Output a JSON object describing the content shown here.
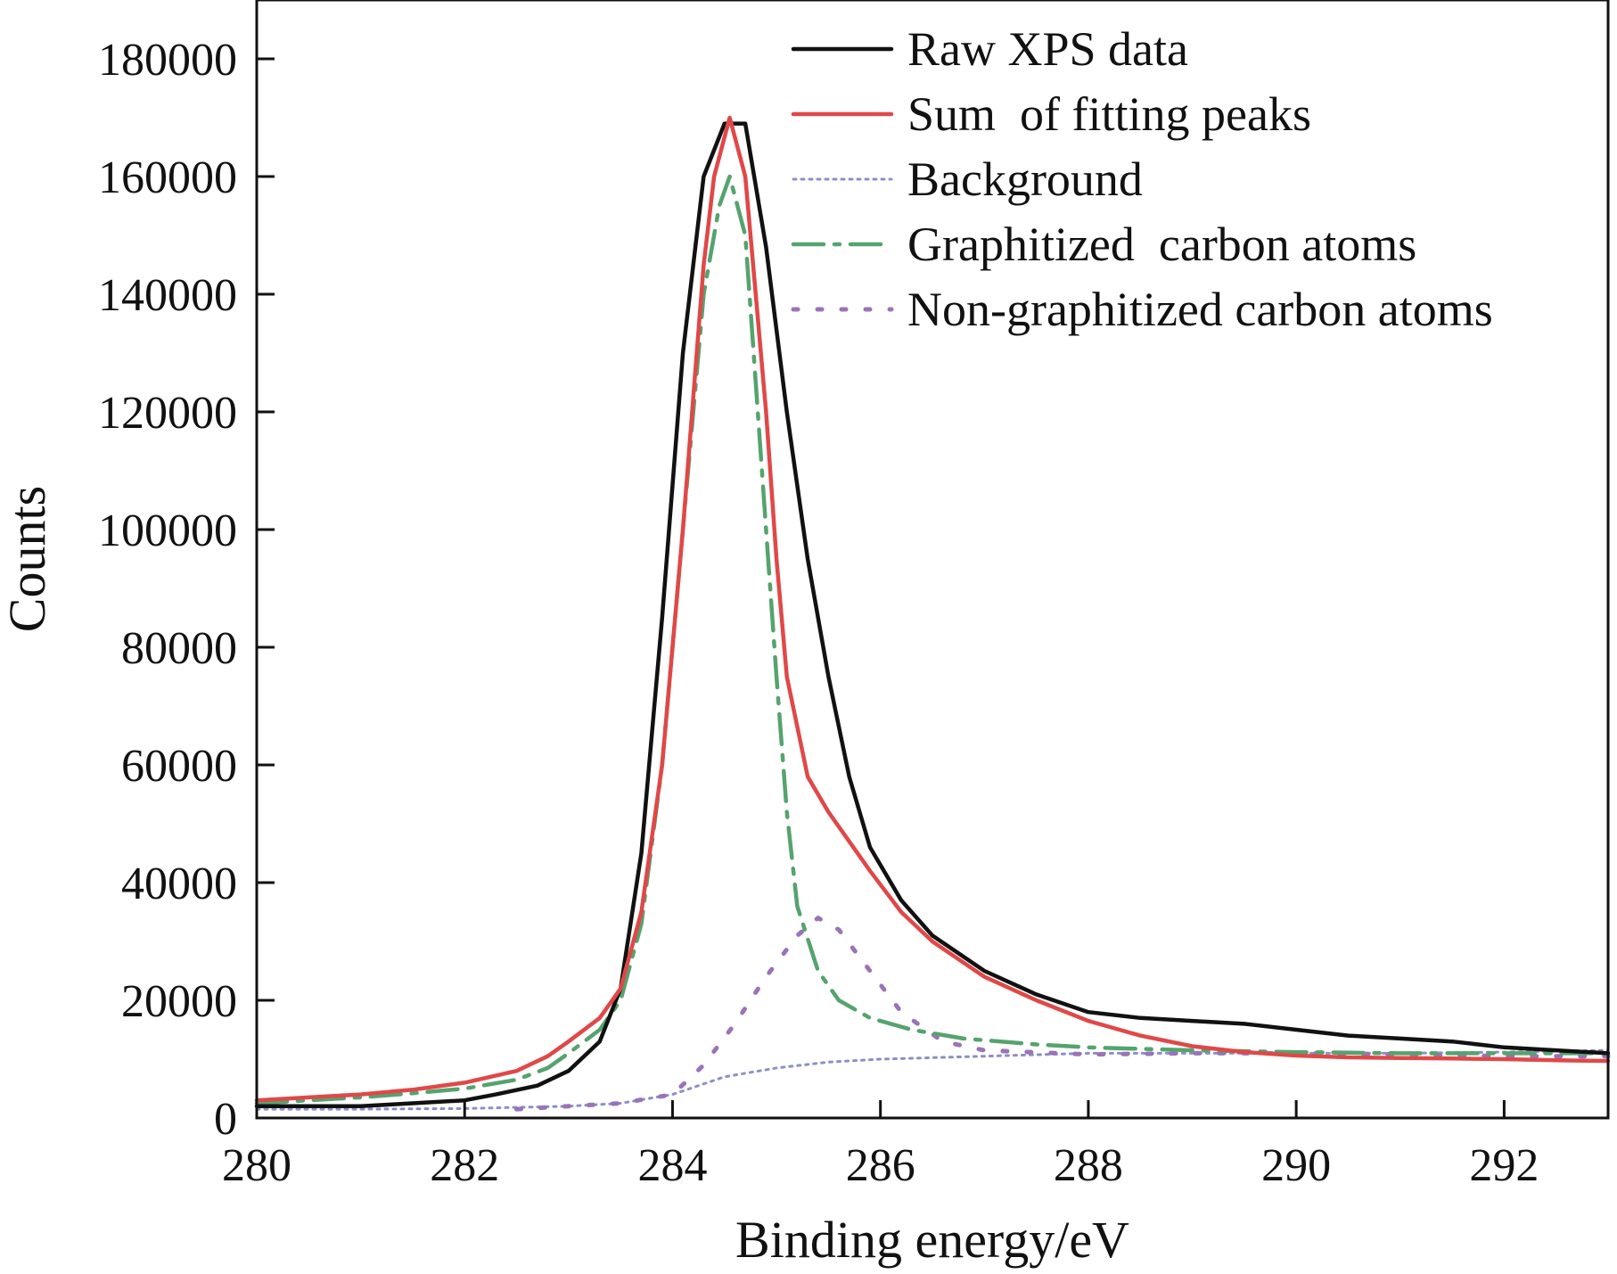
{
  "chart_data": {
    "type": "line",
    "title": "",
    "xlabel": "Binding energy/eV",
    "ylabel": "Counts",
    "xlim": [
      280,
      293
    ],
    "ylim": [
      0,
      190000
    ],
    "x_ticks": [
      280,
      282,
      284,
      286,
      288,
      290,
      292
    ],
    "x_tick_labels": [
      "280",
      "282",
      "284",
      "286",
      "288",
      "290",
      "292"
    ],
    "y_ticks": [
      0,
      20000,
      40000,
      60000,
      80000,
      100000,
      120000,
      140000,
      160000,
      180000
    ],
    "y_tick_labels": [
      "0",
      "20000",
      "40000",
      "60000",
      "80000",
      "100000",
      "120000",
      "140000",
      "160000",
      "180000"
    ],
    "grid": false,
    "legend_position": "top-right",
    "series": [
      {
        "name": "Raw XPS data",
        "color": "#111111",
        "style": "solid",
        "points": [
          [
            280,
            2000
          ],
          [
            280.5,
            2000
          ],
          [
            281,
            2000
          ],
          [
            281.5,
            2500
          ],
          [
            282,
            3000
          ],
          [
            282.3,
            4000
          ],
          [
            282.7,
            5500
          ],
          [
            283,
            8000
          ],
          [
            283.3,
            13000
          ],
          [
            283.5,
            22000
          ],
          [
            283.7,
            45000
          ],
          [
            283.9,
            85000
          ],
          [
            284.1,
            130000
          ],
          [
            284.3,
            160000
          ],
          [
            284.5,
            169000
          ],
          [
            284.7,
            169000
          ],
          [
            284.9,
            148000
          ],
          [
            285.1,
            120000
          ],
          [
            285.3,
            95000
          ],
          [
            285.5,
            75000
          ],
          [
            285.7,
            58000
          ],
          [
            285.9,
            46000
          ],
          [
            286.2,
            37000
          ],
          [
            286.5,
            31000
          ],
          [
            287,
            25000
          ],
          [
            287.5,
            21000
          ],
          [
            288,
            18000
          ],
          [
            288.5,
            17000
          ],
          [
            289,
            16500
          ],
          [
            289.5,
            16000
          ],
          [
            290,
            15000
          ],
          [
            290.5,
            14000
          ],
          [
            291,
            13500
          ],
          [
            291.5,
            13000
          ],
          [
            292,
            12000
          ],
          [
            292.5,
            11500
          ],
          [
            293,
            11000
          ]
        ]
      },
      {
        "name": "Sum  of fitting peaks",
        "color": "#e04848",
        "style": "solid",
        "points": [
          [
            280,
            3000
          ],
          [
            280.5,
            3500
          ],
          [
            281,
            4000
          ],
          [
            281.5,
            4800
          ],
          [
            282,
            6000
          ],
          [
            282.5,
            8000
          ],
          [
            282.8,
            10500
          ],
          [
            283,
            13000
          ],
          [
            283.3,
            17000
          ],
          [
            283.5,
            22000
          ],
          [
            283.7,
            35000
          ],
          [
            283.9,
            60000
          ],
          [
            284.1,
            100000
          ],
          [
            284.3,
            145000
          ],
          [
            284.4,
            160000
          ],
          [
            284.55,
            170000
          ],
          [
            284.7,
            160000
          ],
          [
            284.8,
            140000
          ],
          [
            284.9,
            120000
          ],
          [
            285,
            95000
          ],
          [
            285.1,
            75000
          ],
          [
            285.3,
            58000
          ],
          [
            285.5,
            52000
          ],
          [
            285.7,
            47000
          ],
          [
            285.9,
            42000
          ],
          [
            286.2,
            35000
          ],
          [
            286.5,
            30000
          ],
          [
            287,
            24000
          ],
          [
            287.5,
            20000
          ],
          [
            288,
            16500
          ],
          [
            288.5,
            14000
          ],
          [
            289,
            12200
          ],
          [
            289.5,
            11200
          ],
          [
            290,
            10600
          ],
          [
            290.5,
            10300
          ],
          [
            291,
            10200
          ],
          [
            291.5,
            10100
          ],
          [
            292,
            10000
          ],
          [
            292.5,
            9800
          ],
          [
            293,
            9700
          ]
        ]
      },
      {
        "name": "Background",
        "color": "#8d8fc9",
        "style": "dotted",
        "points": [
          [
            280,
            1500
          ],
          [
            281,
            1500
          ],
          [
            282,
            1600
          ],
          [
            283,
            2000
          ],
          [
            283.5,
            2500
          ],
          [
            284,
            4000
          ],
          [
            284.5,
            7000
          ],
          [
            285,
            8500
          ],
          [
            285.5,
            9500
          ],
          [
            286,
            10000
          ],
          [
            287,
            10500
          ],
          [
            288,
            11000
          ],
          [
            289,
            11000
          ],
          [
            290,
            11000
          ],
          [
            291,
            11000
          ],
          [
            292,
            11200
          ],
          [
            293,
            11500
          ]
        ]
      },
      {
        "name": "Graphitized  carbon atoms",
        "color": "#55a36e",
        "style": "dashdot",
        "points": [
          [
            280,
            2500
          ],
          [
            280.5,
            3000
          ],
          [
            281,
            3500
          ],
          [
            281.5,
            4200
          ],
          [
            282,
            5000
          ],
          [
            282.5,
            6500
          ],
          [
            282.8,
            8500
          ],
          [
            283,
            11000
          ],
          [
            283.3,
            15000
          ],
          [
            283.5,
            20000
          ],
          [
            283.7,
            33000
          ],
          [
            283.9,
            60000
          ],
          [
            284.1,
            100000
          ],
          [
            284.3,
            140000
          ],
          [
            284.45,
            155000
          ],
          [
            284.55,
            160000
          ],
          [
            284.7,
            150000
          ],
          [
            284.8,
            125000
          ],
          [
            284.9,
            100000
          ],
          [
            285,
            75000
          ],
          [
            285.1,
            52000
          ],
          [
            285.2,
            36000
          ],
          [
            285.4,
            25000
          ],
          [
            285.6,
            20000
          ],
          [
            285.9,
            17000
          ],
          [
            286.3,
            15000
          ],
          [
            286.8,
            13500
          ],
          [
            287.5,
            12500
          ],
          [
            288,
            12000
          ],
          [
            289,
            11500
          ],
          [
            290,
            11200
          ],
          [
            291,
            11000
          ],
          [
            292,
            11000
          ],
          [
            293,
            11000
          ]
        ]
      },
      {
        "name": "Non-graphitized carbon atoms",
        "color": "#9a73b8",
        "style": "dotted-large",
        "points": [
          [
            282.5,
            1500
          ],
          [
            283,
            2000
          ],
          [
            283.5,
            2500
          ],
          [
            284,
            4000
          ],
          [
            284.3,
            9000
          ],
          [
            284.6,
            16000
          ],
          [
            284.9,
            24000
          ],
          [
            285.2,
            31000
          ],
          [
            285.4,
            34000
          ],
          [
            285.6,
            32000
          ],
          [
            285.9,
            25000
          ],
          [
            286.2,
            18000
          ],
          [
            286.6,
            13000
          ],
          [
            287,
            11500
          ],
          [
            288,
            10800
          ],
          [
            289,
            11000
          ],
          [
            290,
            11000
          ],
          [
            291,
            10800
          ],
          [
            292,
            10500
          ],
          [
            293,
            10500
          ]
        ]
      }
    ]
  }
}
